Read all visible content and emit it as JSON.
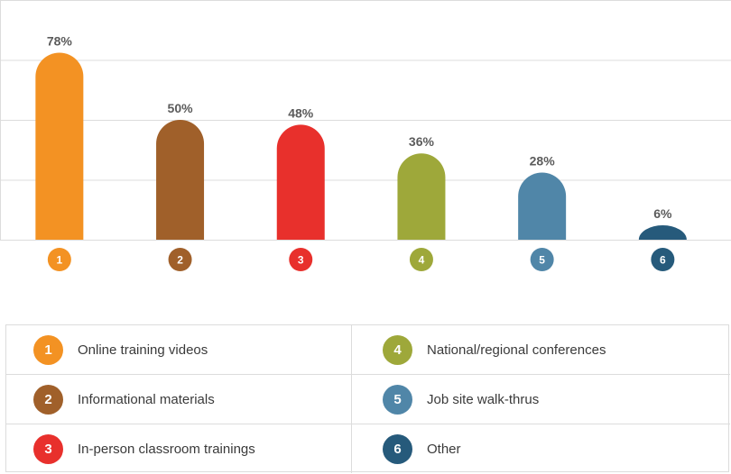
{
  "chart_data": {
    "type": "bar",
    "categories": [
      "1",
      "2",
      "3",
      "4",
      "5",
      "6"
    ],
    "values": [
      78,
      50,
      48,
      36,
      28,
      6
    ],
    "value_labels": [
      "78%",
      "50%",
      "48%",
      "36%",
      "28%",
      "6%"
    ],
    "colors": [
      "#f39223",
      "#a0602a",
      "#e8302c",
      "#9ea83a",
      "#5086a8",
      "#265a7b"
    ],
    "ylim": [
      0,
      100
    ],
    "grid": true,
    "legend": "bottom"
  },
  "legend": {
    "items": [
      {
        "num": "1",
        "label": "Online training videos",
        "color": "#f39223"
      },
      {
        "num": "4",
        "label": "National/regional conferences",
        "color": "#9ea83a"
      },
      {
        "num": "2",
        "label": "Informational materials",
        "color": "#a0602a"
      },
      {
        "num": "5",
        "label": "Job site walk-thrus",
        "color": "#5086a8"
      },
      {
        "num": "3",
        "label": "In-person classroom trainings",
        "color": "#e8302c"
      },
      {
        "num": "6",
        "label": "Other",
        "color": "#265a7b"
      }
    ]
  }
}
